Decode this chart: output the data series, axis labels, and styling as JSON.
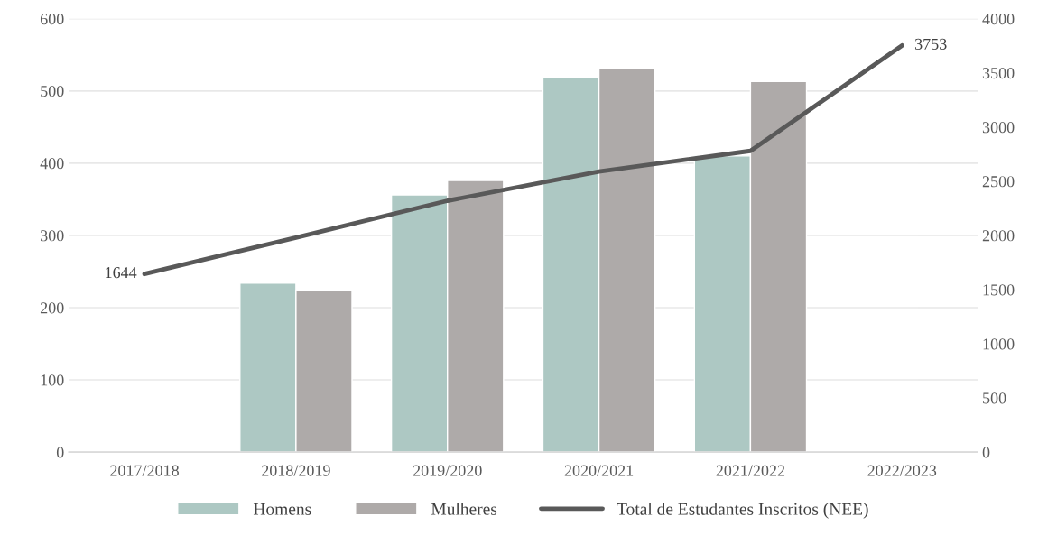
{
  "chart_data": {
    "type": "bar",
    "categories": [
      "2017/2018",
      "2018/2019",
      "2019/2020",
      "2020/2021",
      "2021/2022",
      "2022/2023"
    ],
    "series": [
      {
        "name": "Homens",
        "color": "#adc8c3",
        "values": [
          null,
          234,
          356,
          518,
          410,
          null
        ]
      },
      {
        "name": "Mulheres",
        "color": "#aeaaa9",
        "values": [
          null,
          224,
          376,
          531,
          513,
          null
        ]
      },
      {
        "name": "Total de Estudantes Inscritos (NEE)",
        "type": "line",
        "axis": "y2",
        "color": "#595959",
        "values": [
          1644,
          1980,
          2320,
          2590,
          2780,
          3753
        ],
        "value_labels": [
          "1644",
          null,
          null,
          null,
          null,
          "3753"
        ]
      }
    ],
    "ylim": [
      0,
      600
    ],
    "yticks": [
      0,
      100,
      200,
      300,
      400,
      500,
      600
    ],
    "y2lim": [
      0,
      4000
    ],
    "y2ticks": [
      0,
      500,
      1000,
      1500,
      2000,
      2500,
      3000,
      3500,
      4000
    ],
    "grid": "y",
    "legend": "bottom"
  }
}
